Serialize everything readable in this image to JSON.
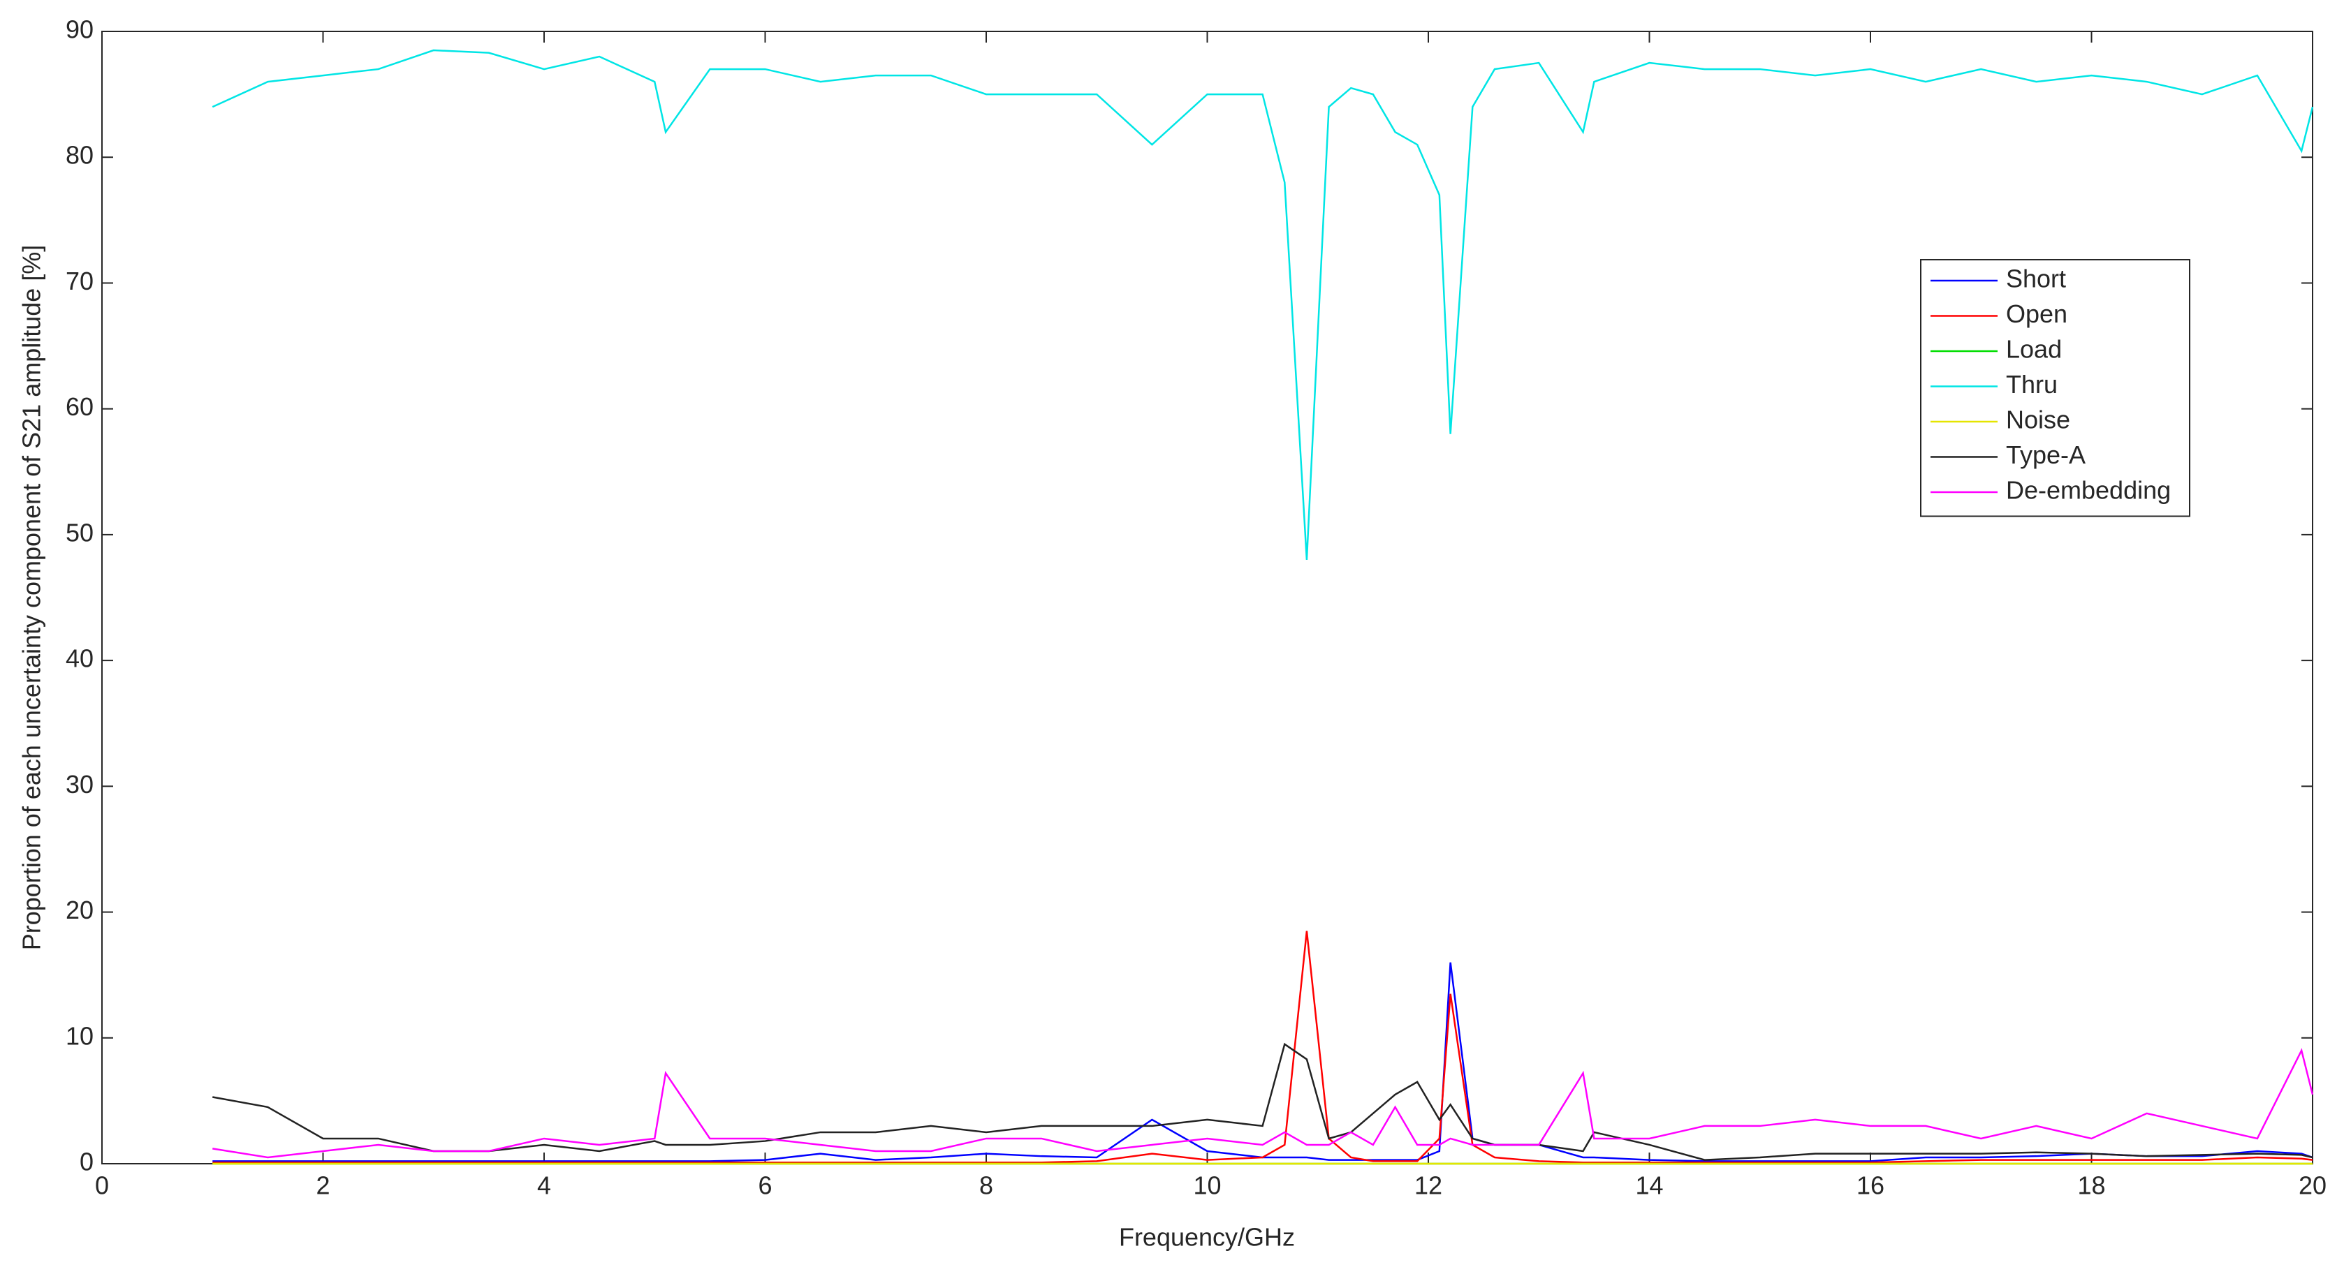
{
  "chart_data": {
    "type": "line",
    "xlabel": "Frequency/GHz",
    "ylabel": "Proportion of each uncertainty component of S21 amplitude [%]",
    "x": [
      1,
      1.5,
      2,
      2.5,
      3,
      3.5,
      4,
      4.5,
      5,
      5.1,
      5.5,
      6,
      6.5,
      7,
      7.5,
      8,
      8.5,
      9,
      9.5,
      10,
      10.5,
      10.7,
      10.9,
      11.1,
      11.3,
      11.5,
      11.7,
      11.9,
      12.1,
      12.2,
      12.4,
      12.6,
      13,
      13.4,
      13.5,
      14,
      14.5,
      15,
      15.5,
      16,
      16.5,
      17,
      17.5,
      18,
      18.5,
      19,
      19.5,
      19.9,
      20
    ],
    "xlim": [
      0,
      20
    ],
    "xticks": [
      0,
      2,
      4,
      6,
      8,
      10,
      12,
      14,
      16,
      18,
      20
    ],
    "ylim": [
      0,
      90
    ],
    "yticks": [
      0,
      10,
      20,
      30,
      40,
      50,
      60,
      70,
      80,
      90
    ],
    "grid": false,
    "legend": "northeast",
    "series": [
      {
        "name": "Short",
        "color": "#0000ff",
        "values": [
          0.2,
          0.2,
          0.2,
          0.2,
          0.2,
          0.2,
          0.2,
          0.2,
          0.2,
          0.2,
          0.2,
          0.3,
          0.8,
          0.3,
          0.5,
          0.8,
          0.6,
          0.5,
          3.5,
          1,
          0.5,
          0.5,
          0.5,
          0.3,
          0.3,
          0.3,
          0.3,
          0.3,
          1,
          16,
          2,
          1.5,
          1.5,
          0.5,
          0.5,
          0.3,
          0.2,
          0.2,
          0.2,
          0.2,
          0.5,
          0.5,
          0.6,
          0.8,
          0.6,
          0.6,
          1,
          0.8,
          0.5
        ]
      },
      {
        "name": "Open",
        "color": "#ff0000",
        "values": [
          0.1,
          0.1,
          0.1,
          0.1,
          0.1,
          0.1,
          0.1,
          0.1,
          0.1,
          0.1,
          0.1,
          0.1,
          0.1,
          0.1,
          0.1,
          0.1,
          0.1,
          0.2,
          0.8,
          0.3,
          0.5,
          1.5,
          18.5,
          2,
          0.5,
          0.2,
          0.2,
          0.2,
          2,
          13.5,
          1.5,
          0.5,
          0.2,
          0.1,
          0.1,
          0.1,
          0.1,
          0.1,
          0.1,
          0.1,
          0.2,
          0.3,
          0.3,
          0.3,
          0.3,
          0.3,
          0.5,
          0.4,
          0.3
        ]
      },
      {
        "name": "Load",
        "color": "#00dd00",
        "values": [
          0,
          0,
          0,
          0,
          0,
          0,
          0,
          0,
          0,
          0,
          0,
          0,
          0,
          0,
          0,
          0,
          0,
          0,
          0,
          0,
          0,
          0,
          0,
          0,
          0,
          0,
          0,
          0,
          0,
          0,
          0,
          0,
          0,
          0,
          0,
          0,
          0,
          0,
          0,
          0,
          0,
          0,
          0,
          0,
          0,
          0,
          0,
          0,
          0
        ]
      },
      {
        "name": "Thru",
        "color": "#00e5e5",
        "values": [
          84,
          86,
          86.5,
          87,
          88.5,
          88.3,
          87,
          88,
          86,
          82,
          87,
          87,
          86,
          86.5,
          86.5,
          85,
          85,
          85,
          81,
          85,
          85,
          78,
          48,
          84,
          85.5,
          85,
          82,
          81,
          77,
          58,
          84,
          87,
          87.5,
          82,
          86,
          87.5,
          87,
          87,
          86.5,
          87,
          86,
          87,
          86,
          86.5,
          86,
          85,
          86.5,
          80.5,
          84
        ]
      },
      {
        "name": "Noise",
        "color": "#e5e500",
        "values": [
          0,
          0,
          0,
          0,
          0,
          0,
          0,
          0,
          0,
          0,
          0,
          0,
          0,
          0,
          0,
          0,
          0,
          0,
          0,
          0,
          0,
          0,
          0,
          0,
          0,
          0,
          0,
          0,
          0,
          0,
          0,
          0,
          0,
          0,
          0,
          0,
          0,
          0,
          0,
          0,
          0,
          0,
          0,
          0,
          0,
          0,
          0,
          0,
          0
        ]
      },
      {
        "name": "Type-A",
        "color": "#222222",
        "values": [
          5.3,
          4.5,
          2,
          2,
          1,
          1,
          1.5,
          1,
          1.8,
          1.5,
          1.5,
          1.8,
          2.5,
          2.5,
          3,
          2.5,
          3,
          3,
          3,
          3.5,
          3,
          9.5,
          8.3,
          2,
          2.5,
          4,
          5.5,
          6.5,
          3.5,
          4.7,
          2,
          1.5,
          1.5,
          1,
          2.5,
          1.5,
          0.3,
          0.5,
          0.8,
          0.8,
          0.8,
          0.8,
          0.9,
          0.8,
          0.6,
          0.7,
          0.8,
          0.7,
          0.5
        ]
      },
      {
        "name": "De-embedding",
        "color": "#ff00ff",
        "values": [
          1.2,
          0.5,
          1,
          1.5,
          1,
          1,
          2,
          1.5,
          2,
          7.2,
          2,
          2,
          1.5,
          1,
          1,
          2,
          2,
          1,
          1.5,
          2,
          1.5,
          2.5,
          1.5,
          1.5,
          2.5,
          1.5,
          4.5,
          1.5,
          1.5,
          2,
          1.5,
          1.5,
          1.5,
          7.2,
          2,
          2,
          3,
          3,
          3.5,
          3,
          3,
          2,
          3,
          2,
          4,
          3,
          2,
          9,
          5.5
        ]
      }
    ]
  }
}
